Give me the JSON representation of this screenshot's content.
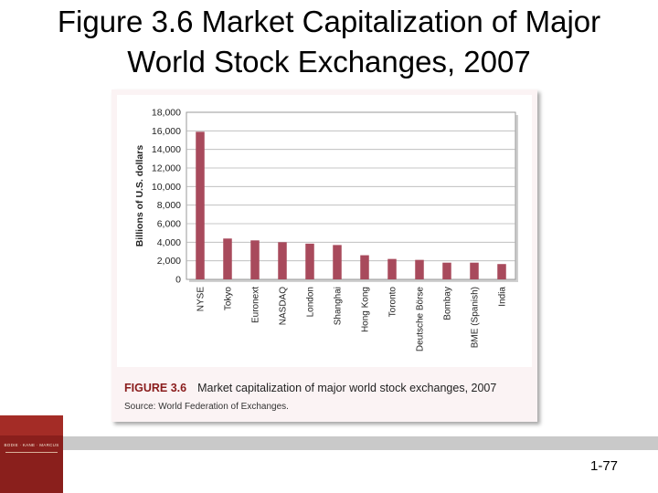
{
  "slide": {
    "title_line1": "Figure 3.6 Market Capitalization of Major",
    "title_line2": "World Stock Exchanges, 2007",
    "page_number": "1-77",
    "book_cover_text": "BODIE · KANE · MARCUS"
  },
  "caption": {
    "label": "FIGURE 3.6",
    "text": "Market capitalization of major world stock exchanges, 2007",
    "source": "Source: World Federation of Exchanges."
  },
  "colors": {
    "bar": "#a84a5c",
    "grid": "#b5b5b5",
    "plot_border": "#9a9a9a",
    "caption_label": "#8a1c1c"
  },
  "chart_data": {
    "type": "bar",
    "title": "Market capitalization of major world stock exchanges, 2007",
    "xlabel": "",
    "ylabel": "Billions of U.S. dollars",
    "ylim": [
      0,
      18000
    ],
    "yticks": [
      0,
      2000,
      4000,
      6000,
      8000,
      10000,
      12000,
      14000,
      16000,
      18000
    ],
    "ytick_labels": [
      "0",
      "2,000",
      "4,000",
      "6,000",
      "8,000",
      "10,000",
      "12,000",
      "14,000",
      "16,000",
      "18,000"
    ],
    "grid": true,
    "categories": [
      "NYSE",
      "Tokyo",
      "Euronext",
      "NASDAQ",
      "London",
      "Shanghai",
      "Hong Kong",
      "Toronto",
      "Deutsche Börse",
      "Bombay",
      "BME (Spanish)",
      "India"
    ],
    "values": [
      15900,
      4400,
      4200,
      4000,
      3850,
      3700,
      2600,
      2200,
      2100,
      1800,
      1800,
      1650
    ]
  }
}
